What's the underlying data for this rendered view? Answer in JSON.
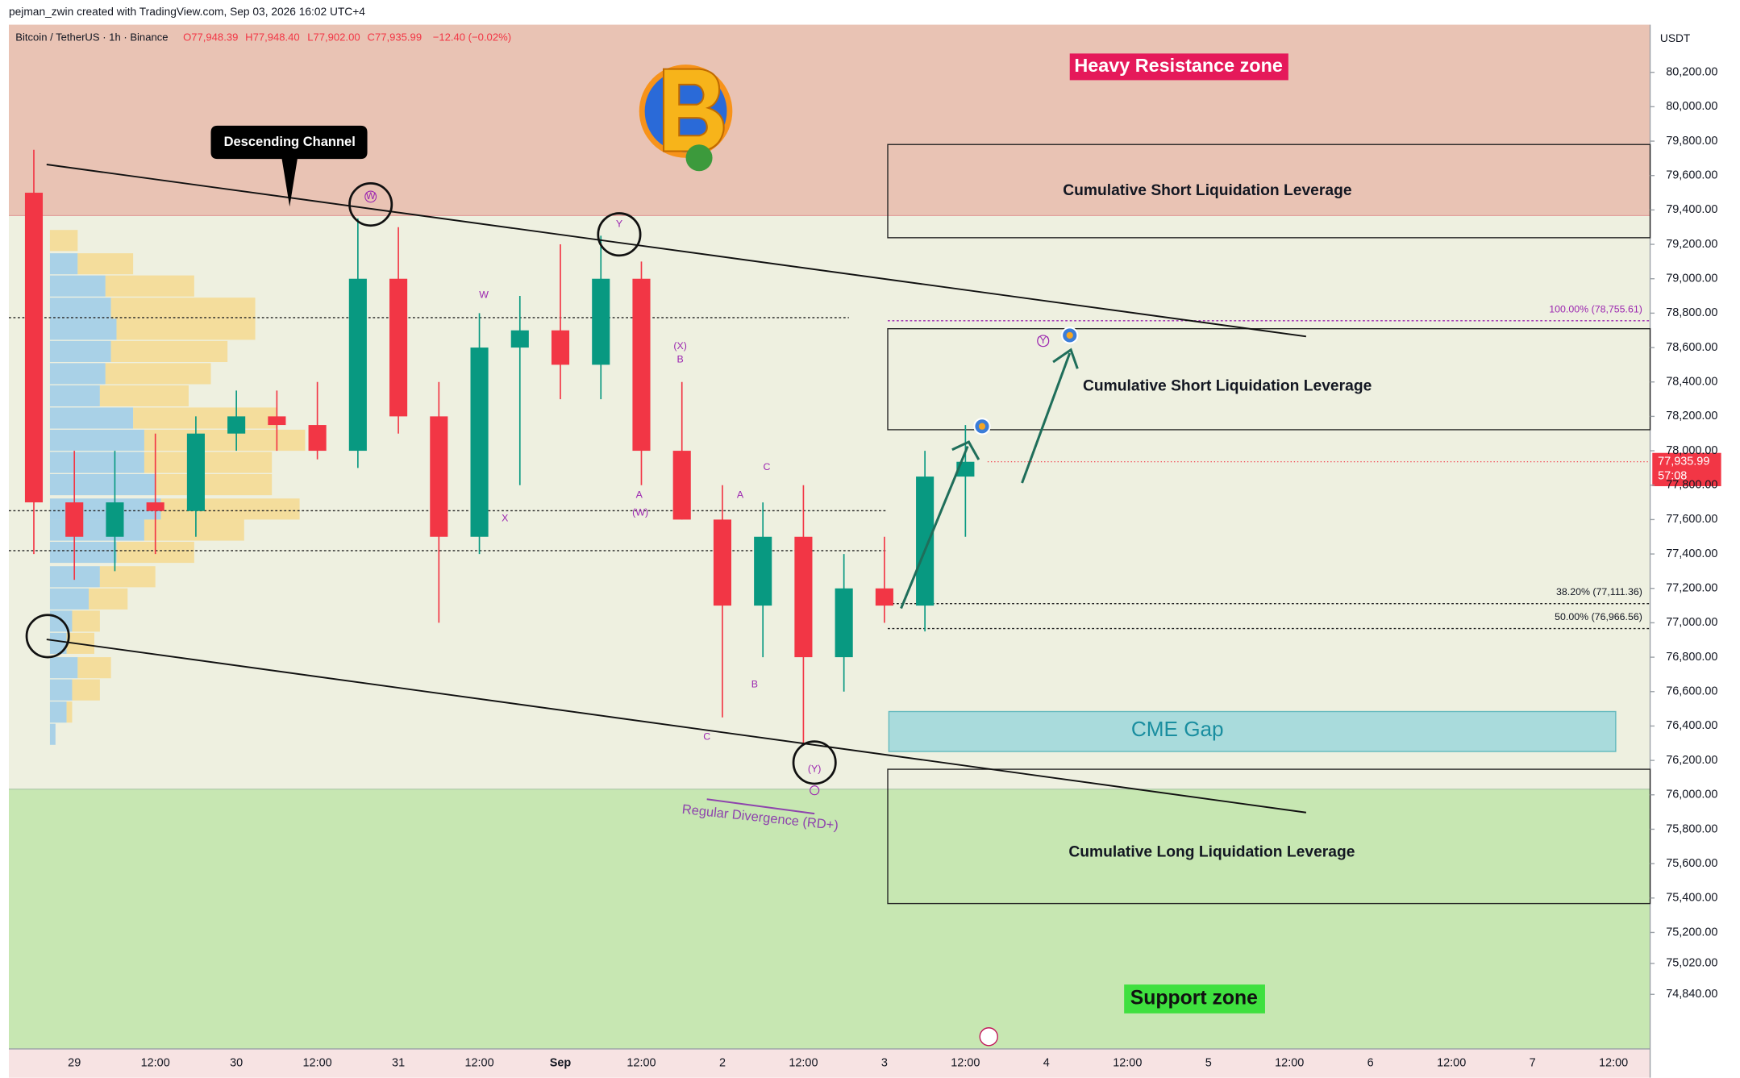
{
  "chart_data": {
    "type": "candlestick",
    "attribution": "pejman_zwin created with TradingView.com, Sep 03, 2026 16:02 UTC+4",
    "symbol": "Bitcoin / TetherUS · 1h · Binance",
    "ohlc": [
      "O77,948.39",
      "H77,948.40",
      "L77,902.00",
      "C77,935.99",
      "−12.40 (−0.02%)"
    ],
    "currency": "USDT",
    "categories": [
      null,
      "29",
      null,
      "12:00",
      null,
      "30",
      null,
      "12:00",
      null,
      "31",
      null,
      "12:00",
      null,
      "Sep",
      null,
      "12:00",
      null,
      "2",
      null,
      "12:00",
      null,
      "3",
      null,
      "12:00",
      null,
      "4",
      null,
      "12:00",
      null,
      "5",
      null,
      "12:00",
      null,
      "6",
      null,
      "12:00",
      null,
      "7",
      null,
      "12:00"
    ],
    "open": [
      79500,
      77700,
      77500,
      77700,
      77650,
      78100,
      78200,
      78150,
      78000,
      79000,
      78200,
      77500,
      78600,
      78700,
      78500,
      79000,
      78000,
      77600,
      77100,
      77500,
      76800,
      77200,
      77100,
      77850,
      null,
      null,
      null,
      null,
      null,
      null,
      null,
      null,
      null,
      null,
      null,
      null,
      null,
      null,
      null,
      null
    ],
    "high": [
      79750,
      78000,
      78000,
      78100,
      78200,
      78350,
      78350,
      78400,
      79350,
      79300,
      78400,
      78800,
      78900,
      79200,
      79250,
      79100,
      78400,
      77800,
      77700,
      77800,
      77400,
      77500,
      78000,
      78150,
      null,
      null,
      null,
      null,
      null,
      null,
      null,
      null,
      null,
      null,
      null,
      null,
      null,
      null,
      null,
      null
    ],
    "low": [
      77400,
      77250,
      77300,
      77400,
      77500,
      78000,
      78000,
      77950,
      77900,
      78100,
      77000,
      77400,
      77800,
      78300,
      78300,
      77800,
      77600,
      76450,
      76800,
      76300,
      76600,
      77000,
      76950,
      77500,
      null,
      null,
      null,
      null,
      null,
      null,
      null,
      null,
      null,
      null,
      null,
      null,
      null,
      null,
      null,
      null
    ],
    "close": [
      77700,
      77500,
      77700,
      77650,
      78100,
      78200,
      78150,
      78000,
      79000,
      78200,
      77500,
      78600,
      78700,
      78500,
      79000,
      78000,
      77600,
      77100,
      77500,
      76800,
      77200,
      77100,
      77850,
      77935.99,
      null,
      null,
      null,
      null,
      null,
      null,
      null,
      null,
      null,
      null,
      null,
      null,
      null,
      null,
      null,
      null
    ],
    "up_color": "#089981",
    "down_color": "#f23645",
    "ylim": [
      74523,
      80477
    ],
    "yticks": [
      {
        "value": 80200,
        "label": "80,200.00"
      },
      {
        "value": 80000,
        "label": "80,000.00"
      },
      {
        "value": 79800,
        "label": "79,800.00"
      },
      {
        "value": 79600,
        "label": "79,600.00"
      },
      {
        "value": 79400,
        "label": "79,400.00"
      },
      {
        "value": 79200,
        "label": "79,200.00"
      },
      {
        "value": 79000,
        "label": "79,000.00"
      },
      {
        "value": 78800,
        "label": "78,800.00"
      },
      {
        "value": 78600,
        "label": "78,600.00"
      },
      {
        "value": 78400,
        "label": "78,400.00"
      },
      {
        "value": 78200,
        "label": "78,200.00"
      },
      {
        "value": 78000,
        "label": "78,000.00"
      },
      {
        "value": 77800,
        "label": "77,800.00"
      },
      {
        "value": 77600,
        "label": "77,600.00"
      },
      {
        "value": 77400,
        "label": "77,400.00"
      },
      {
        "value": 77200,
        "label": "77,200.00"
      },
      {
        "value": 77000,
        "label": "77,000.00"
      },
      {
        "value": 76800,
        "label": "76,800.00"
      },
      {
        "value": 76600,
        "label": "76,600.00"
      },
      {
        "value": 76400,
        "label": "76,400.00"
      },
      {
        "value": 76200,
        "label": "76,200.00"
      },
      {
        "value": 76000,
        "label": "76,000.00"
      },
      {
        "value": 75800,
        "label": "75,800.00"
      },
      {
        "value": 75600,
        "label": "75,600.00"
      },
      {
        "value": 75400,
        "label": "75,400.00"
      },
      {
        "value": 75200,
        "label": "75,200.00"
      },
      {
        "value": 75020,
        "label": "75,020.00"
      },
      {
        "value": 74840,
        "label": "74,840.00"
      }
    ],
    "last_price": {
      "value": 77935.99,
      "label": "77,935.99"
    },
    "countdown": "57:08",
    "fib_levels": [
      {
        "value": 78755.61,
        "label": "100.00% (78,755.61)"
      },
      {
        "value": 77111.36,
        "label": "38.20% (77,111.36)"
      },
      {
        "value": 76966.56,
        "label": "50.00% (76,966.56)"
      }
    ],
    "annotations": [
      "Heavy Resistance zone",
      "Support zone",
      "Cumulative Short Liquidation Leverage",
      "Cumulative Short Liquidation Leverage",
      "Cumulative Long Liquidation Leverage",
      "CME Gap",
      "Descending Channel",
      "Regular Divergence (RD+)"
    ],
    "wave_labels": [
      "W",
      "W",
      "X",
      "Y",
      "(X)",
      "B",
      "A",
      "(W)",
      "C",
      "A",
      "B",
      "C",
      "(Y)",
      "(Y)"
    ]
  }
}
